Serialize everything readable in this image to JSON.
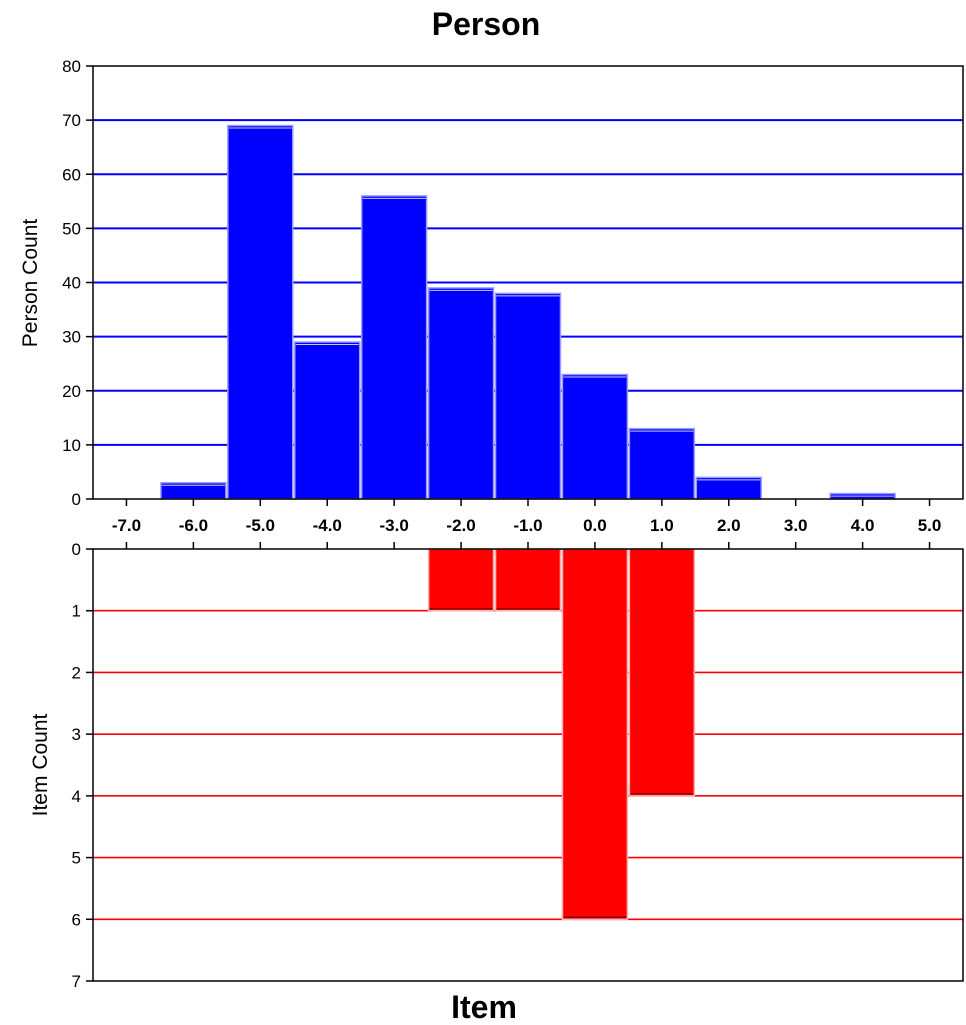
{
  "chart_data": [
    {
      "type": "bar",
      "title": "Person",
      "ylabel": "Person Count",
      "xlabel": "",
      "ylim": [
        0,
        80
      ],
      "yticks": [
        0,
        10,
        20,
        30,
        40,
        50,
        60,
        70,
        80
      ],
      "xlim": [
        -7.5,
        5.5
      ],
      "xticks": [
        "-7.0",
        "-6.0",
        "-5.0",
        "-4.0",
        "-3.0",
        "-2.0",
        "-1.0",
        "0.0",
        "1.0",
        "2.0",
        "3.0",
        "4.0",
        "5.0"
      ],
      "bar_width": 1.0,
      "bars": [
        {
          "x": -6.0,
          "value": 3
        },
        {
          "x": -5.0,
          "value": 69
        },
        {
          "x": -4.0,
          "value": 29
        },
        {
          "x": -3.0,
          "value": 56
        },
        {
          "x": -2.0,
          "value": 39
        },
        {
          "x": -1.0,
          "value": 38
        },
        {
          "x": 0.0,
          "value": 23
        },
        {
          "x": 1.0,
          "value": 13
        },
        {
          "x": 2.0,
          "value": 4
        },
        {
          "x": 4.0,
          "value": 1
        }
      ],
      "grid": true,
      "color": "#0000ff",
      "grid_color": "#0000ff"
    },
    {
      "type": "bar",
      "title": "Item",
      "ylabel": "Item Count",
      "xlabel": "",
      "orientation": "downward",
      "ylim": [
        0,
        7
      ],
      "yticks": [
        0,
        1,
        2,
        3,
        4,
        5,
        6,
        7
      ],
      "xlim": [
        -7.5,
        5.5
      ],
      "bar_width": 1.0,
      "bars": [
        {
          "x": -2.0,
          "value": 1
        },
        {
          "x": -1.0,
          "value": 1
        },
        {
          "x": 0.0,
          "value": 6
        },
        {
          "x": 1.0,
          "value": 4
        }
      ],
      "grid": true,
      "color": "#ff0000",
      "grid_color": "#ff0000"
    }
  ]
}
